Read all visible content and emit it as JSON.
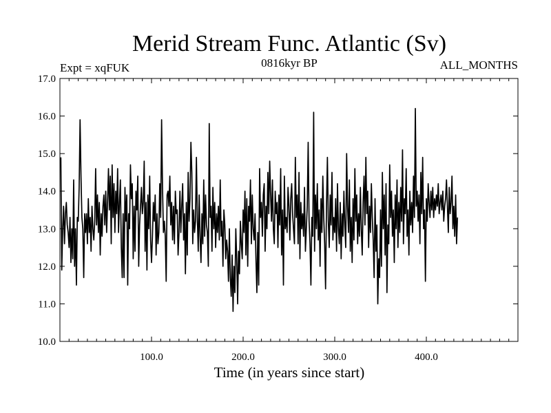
{
  "chart_data": {
    "type": "line",
    "title": "Merid Stream Func. Atlantic (Sv)",
    "subtitle_left": "Expt = xqFUK",
    "subtitle_center": "0816kyr BP",
    "subtitle_right": "ALL_MONTHS",
    "xlabel": "Time (in years since start)",
    "ylabel": "",
    "xlim": [
      0,
      500
    ],
    "ylim": [
      10.0,
      17.0
    ],
    "x_ticks": [
      100,
      200,
      300,
      400
    ],
    "x_tick_labels": [
      "100.0",
      "200.0",
      "300.0",
      "400.0"
    ],
    "y_ticks": [
      10,
      11,
      12,
      13,
      14,
      15,
      16,
      17
    ],
    "y_tick_labels": [
      "10.0",
      "11.0",
      "12.0",
      "13.0",
      "14.0",
      "15.0",
      "16.0",
      "17.0"
    ],
    "series": [
      {
        "name": "Merid Stream Func. Atlantic",
        "x_start": 1,
        "x_step": 1,
        "values": [
          14.9,
          11.9,
          13.0,
          13.6,
          12.6,
          13.4,
          13.7,
          13.1,
          12.9,
          12.5,
          13.3,
          12.1,
          13.0,
          12.2,
          14.3,
          12.0,
          13.0,
          11.5,
          13.3,
          13.2,
          14.1,
          15.9,
          14.4,
          13.3,
          13.0,
          11.7,
          13.4,
          12.9,
          13.4,
          12.6,
          13.8,
          12.9,
          13.3,
          12.4,
          13.6,
          13.0,
          12.7,
          13.2,
          14.6,
          13.1,
          13.9,
          12.9,
          13.7,
          12.3,
          13.4,
          12.8,
          13.6,
          13.9,
          13.1,
          14.0,
          12.9,
          13.7,
          14.6,
          13.5,
          14.4,
          12.6,
          14.7,
          13.3,
          14.2,
          12.9,
          14.0,
          13.4,
          14.6,
          12.9,
          13.7,
          14.3,
          12.5,
          11.7,
          13.4,
          11.7,
          14.1,
          13.2,
          13.9,
          11.5,
          13.4,
          13.0,
          14.7,
          13.8,
          14.2,
          12.2,
          13.6,
          12.4,
          14.0,
          13.5,
          14.4,
          12.0,
          13.1,
          13.6,
          14.1,
          13.4,
          13.7,
          14.8,
          12.4,
          13.7,
          11.9,
          13.9,
          13.0,
          14.4,
          12.7,
          12.1,
          12.8,
          13.7,
          13.2,
          13.9,
          12.3,
          13.4,
          12.6,
          12.9,
          14.2,
          13.3,
          15.9,
          14.1,
          12.9,
          13.2,
          12.8,
          11.6,
          13.9,
          14.0,
          13.6,
          14.4,
          13.1,
          13.7,
          12.7,
          13.6,
          12.6,
          14.0,
          13.4,
          13.5,
          12.3,
          12.9,
          14.0,
          12.9,
          13.6,
          14.2,
          12.7,
          13.4,
          11.8,
          13.7,
          12.3,
          14.5,
          13.2,
          13.8,
          15.3,
          14.5,
          12.6,
          13.5,
          12.9,
          13.2,
          14.9,
          13.3,
          12.4,
          13.9,
          12.8,
          12.1,
          13.4,
          12.6,
          14.3,
          12.8,
          13.9,
          13.1,
          12.9,
          12.0,
          15.8,
          13.3,
          13.6,
          12.4,
          14.1,
          13.0,
          13.7,
          12.5,
          13.4,
          12.9,
          13.6,
          12.7,
          14.3,
          12.8,
          13.2,
          12.0,
          13.5,
          13.1,
          12.2,
          12.7,
          12.4,
          11.6,
          13.0,
          11.7,
          11.2,
          12.3,
          10.8,
          12.0,
          11.3,
          13.0,
          12.2,
          11.0,
          12.4,
          11.8,
          13.2,
          12.6,
          12.2,
          13.5,
          12.9,
          14.0,
          12.3,
          13.8,
          12.0,
          13.6,
          13.2,
          14.3,
          12.6,
          13.9,
          13.0,
          12.7,
          13.4,
          12.2,
          11.3,
          12.9,
          11.5,
          14.6,
          13.3,
          13.7,
          12.8,
          13.9,
          14.2,
          12.4,
          13.6,
          13.0,
          14.5,
          13.4,
          14.8,
          13.9,
          13.2,
          14.3,
          13.0,
          12.6,
          14.0,
          13.4,
          13.7,
          12.5,
          13.9,
          13.1,
          14.6,
          12.3,
          13.5,
          11.5,
          14.4,
          13.0,
          13.3,
          12.9,
          14.1,
          13.6,
          12.7,
          13.8,
          14.2,
          13.4,
          13.0,
          12.6,
          14.9,
          13.3,
          13.9,
          12.6,
          14.5,
          12.2,
          13.7,
          13.0,
          13.4,
          12.8,
          14.1,
          12.4,
          13.0,
          13.6,
          15.3,
          13.2,
          12.6,
          11.5,
          13.3,
          12.8,
          16.1,
          12.4,
          13.9,
          13.0,
          14.2,
          12.7,
          13.5,
          12.0,
          13.8,
          12.9,
          14.4,
          13.3,
          12.6,
          11.4,
          13.6,
          14.9,
          13.2,
          12.5,
          13.9,
          13.1,
          14.5,
          12.7,
          13.3,
          12.9,
          13.8,
          12.4,
          14.2,
          13.0,
          12.6,
          13.7,
          12.2,
          13.4,
          12.8,
          14.0,
          13.1,
          12.5,
          15.0,
          13.6,
          12.9,
          14.3,
          12.4,
          13.3,
          12.1,
          13.8,
          12.7,
          14.6,
          13.2,
          13.9,
          12.6,
          13.4,
          12.8,
          14.1,
          13.0,
          12.3,
          13.7,
          14.4,
          13.1,
          14.9,
          13.4,
          14.0,
          12.5,
          13.6,
          12.9,
          14.2,
          13.3,
          12.7,
          11.7,
          13.8,
          12.4,
          13.1,
          11.0,
          12.2,
          11.7,
          13.5,
          12.0,
          14.5,
          13.0,
          13.9,
          12.3,
          14.2,
          11.3,
          13.1,
          12.6,
          14.7,
          13.3,
          14.0,
          12.8,
          13.5,
          12.1,
          13.9,
          13.0,
          14.3,
          12.5,
          13.7,
          12.9,
          14.1,
          13.2,
          15.1,
          12.6,
          13.8,
          13.4,
          14.6,
          12.8,
          13.5,
          12.3,
          14.0,
          13.1,
          13.7,
          12.9,
          14.4,
          13.3,
          16.2,
          13.6,
          14.0,
          13.2,
          13.9,
          12.6,
          14.5,
          13.4,
          14.9,
          13.0,
          13.5,
          11.6,
          13.8,
          13.2,
          14.2,
          13.7,
          13.3,
          14.0,
          13.5,
          14.1,
          13.3,
          13.8,
          13.5,
          13.9,
          13.6,
          14.2,
          13.4,
          13.7,
          13.9,
          13.5,
          14.0,
          13.2,
          13.6,
          13.8,
          14.3,
          13.6,
          12.9,
          14.1,
          13.4,
          13.7,
          14.4,
          13.0,
          13.6,
          12.8,
          13.9,
          12.6,
          13.3
        ]
      }
    ]
  }
}
